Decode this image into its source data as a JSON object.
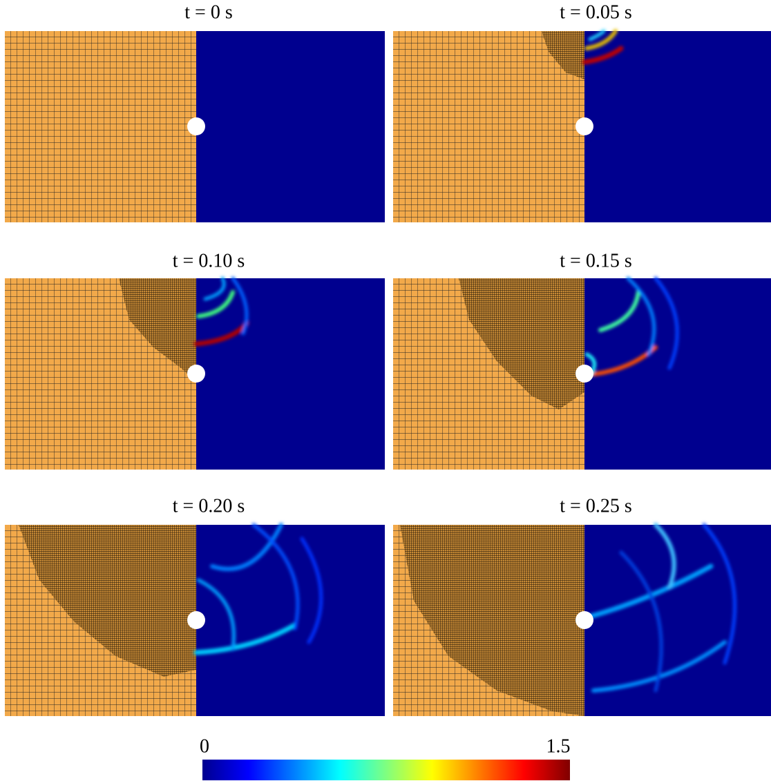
{
  "panels": [
    {
      "title": "t = 0 s"
    },
    {
      "title": "t = 0.05 s"
    },
    {
      "title": "t = 0.10 s"
    },
    {
      "title": "t = 0.15 s"
    },
    {
      "title": "t = 0.20 s"
    },
    {
      "title": "t = 0.25 s"
    }
  ],
  "colorbar": {
    "min": 0,
    "max": 1.5
  }
}
